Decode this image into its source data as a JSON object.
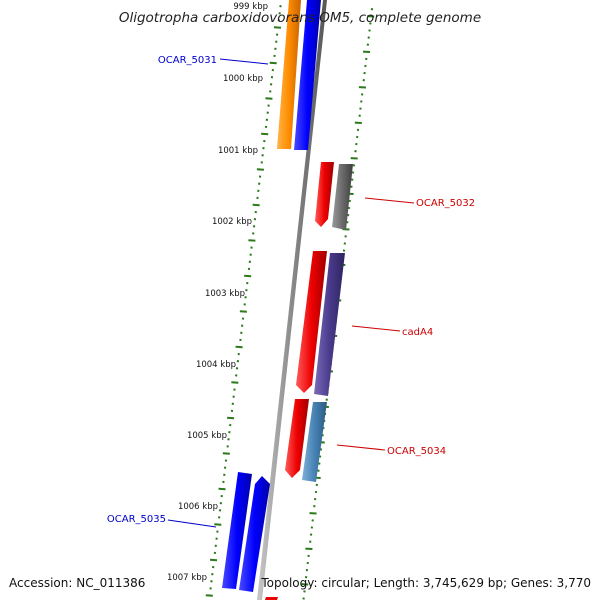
{
  "title": "Oligotropha carboxidovorans OM5, complete genome",
  "footer": {
    "accession": "Accession: NC_011386",
    "summary": "Topology: circular; Length: 3,745,629 bp; Genes: 3,770"
  },
  "ticks": [
    "999 kbp",
    "1000 kbp",
    "1001 kbp",
    "1002 kbp",
    "1003 kbp",
    "1004 kbp",
    "1005 kbp",
    "1006 kbp",
    "1007 kbp"
  ],
  "genes": {
    "ocar5031": "OCAR_5031",
    "ocar5032": "OCAR_5032",
    "cada4": "cadA4",
    "ocar5034": "OCAR_5034",
    "ocar5035": "OCAR_5035"
  },
  "colors": {
    "reverse_label": "#0000cc",
    "forward_label": "#cc0000",
    "tick_mark": "#2a7a1a",
    "orange": "#ff8c00",
    "blue": "#0000ff",
    "red": "#ee0000",
    "gray": "#666666",
    "purple": "#4b3b8c",
    "steel": "#4682b4"
  }
}
